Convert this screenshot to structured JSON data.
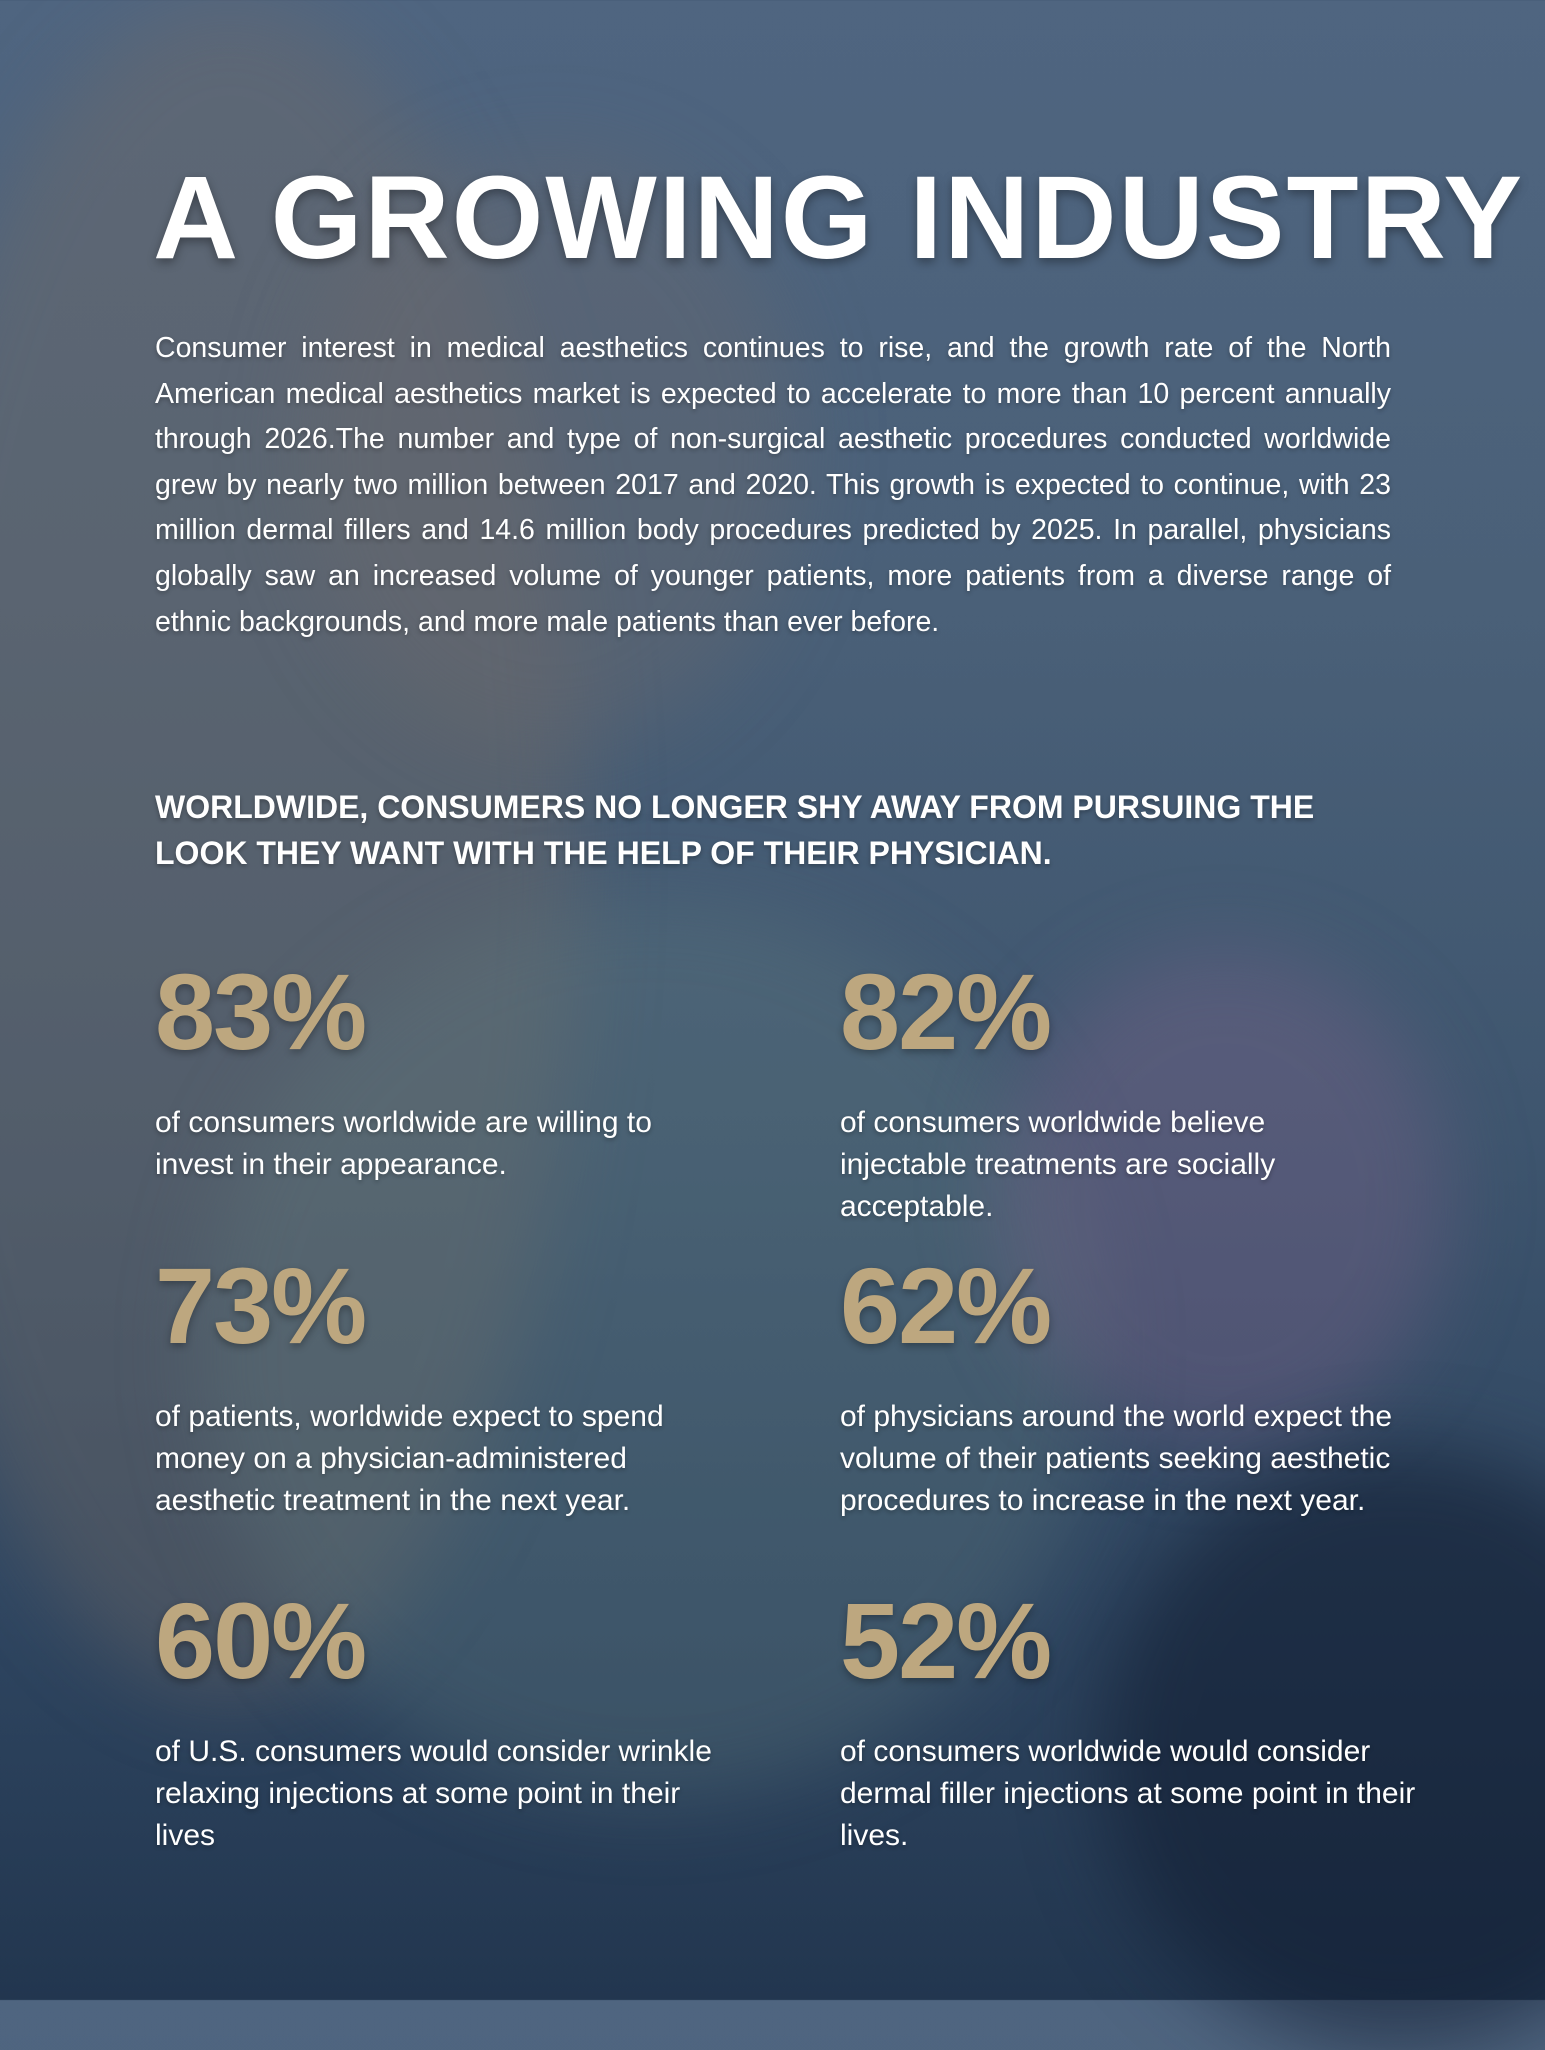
{
  "title": "A GROWING INDUSTRY",
  "intro": "Consumer interest in medical aesthetics continues to rise, and the growth rate of the North American medical aesthetics market is expected to accelerate to more than 10 percent annually through 2026.The number and type of non-surgical aesthetic procedures conducted worldwide grew by nearly two million between 2017 and 2020. This growth is expected to continue, with 23 million dermal fillers and 14.6 million body procedures predicted by 2025. In parallel, physicians globally saw an increased volume of younger patients, more patients from a diverse range of ethnic backgrounds, and more male patients than ever before.",
  "subheading": "WORLDWIDE, CONSUMERS NO LONGER SHY AWAY FROM PURSUING THE LOOK THEY WANT WITH THE HELP OF THEIR PHYSICIAN.",
  "colors": {
    "accent": "#bda77f",
    "overlay": "#4a6078"
  },
  "stats": [
    {
      "value": "83%",
      "text": "of consumers worldwide are willing to invest in their appearance."
    },
    {
      "value": "82%",
      "text": "of consumers worldwide believe injectable treatments are socially acceptable."
    },
    {
      "value": "73%",
      "text": "of patients, worldwide expect to spend money on a physician-administered aesthetic treatment in the next year."
    },
    {
      "value": "62%",
      "text": "of physicians around the world expect the volume of their patients seeking aesthetic procedures to increase in the next year."
    },
    {
      "value": "60%",
      "text": "of U.S. consumers would consider wrinkle relaxing injections at some point in their lives"
    },
    {
      "value": "52%",
      "text": "of consumers worldwide would consider dermal filler injections at some point in their lives."
    }
  ]
}
